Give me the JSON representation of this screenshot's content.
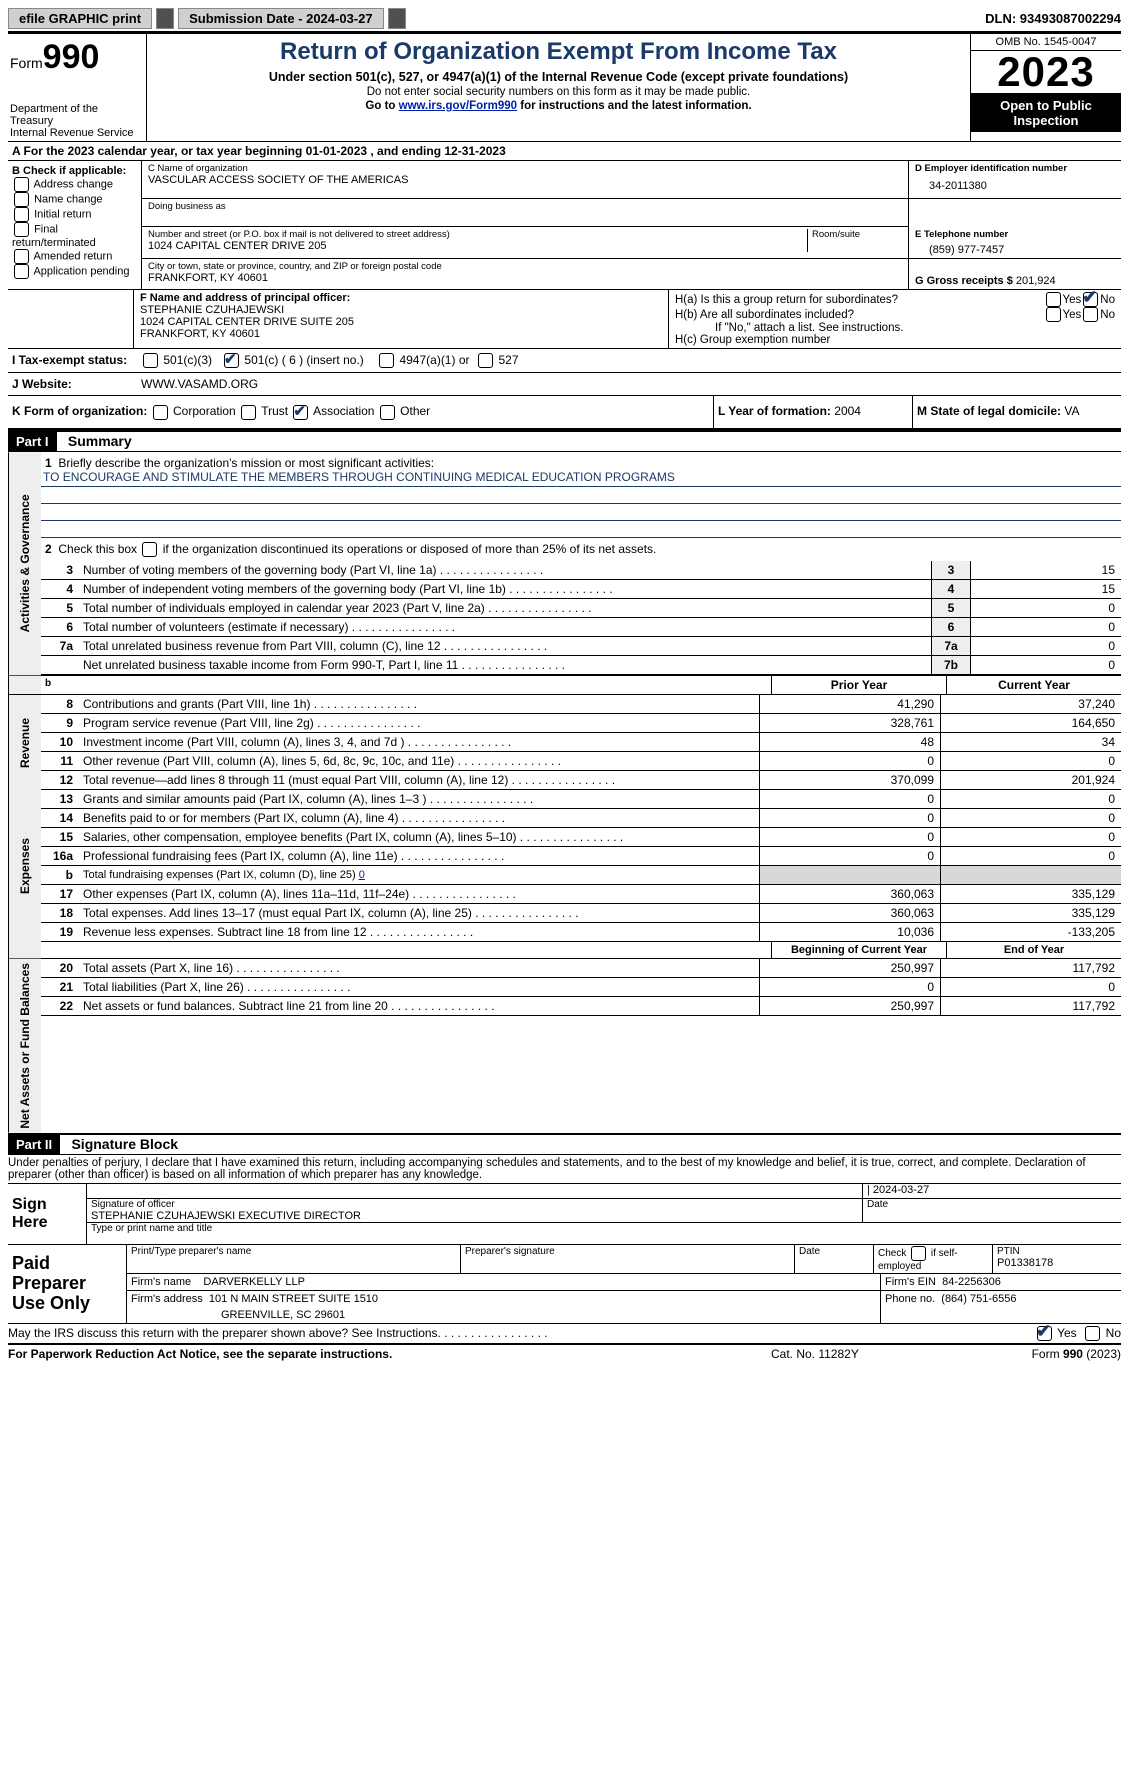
{
  "toolbar": {
    "efile": "efile GRAPHIC print",
    "print_label": "",
    "submission": "Submission Date - 2024-03-27",
    "dln": "DLN: 93493087002294"
  },
  "header": {
    "form_small": "Form",
    "form_big": "990",
    "dept1": "Department of the Treasury",
    "dept2": "Internal Revenue Service",
    "title": "Return of Organization Exempt From Income Tax",
    "subtitle": "Under section 501(c), 527, or 4947(a)(1) of the Internal Revenue Code (except private foundations)",
    "note1": "Do not enter social security numbers on this form as it may be made public.",
    "note2_pre": "Go to ",
    "note2_link": "www.irs.gov/Form990",
    "note2_post": " for instructions and the latest information.",
    "omb": "OMB No. 1545-0047",
    "year": "2023",
    "open": "Open to Public Inspection"
  },
  "row_a": "A  For the 2023 calendar year, or tax year beginning 01-01-2023    , and ending 12-31-2023",
  "section_b": {
    "header": "B Check if applicable:",
    "items": [
      "Address change",
      "Name change",
      "Initial return",
      "Final return/terminated",
      "Amended return",
      "Application pending"
    ]
  },
  "section_c": {
    "name_label": "C Name of organization",
    "name": "VASCULAR ACCESS SOCIETY OF THE AMERICAS",
    "dba_label": "Doing business as",
    "dba": "",
    "street_label": "Number and street (or P.O. box if mail is not delivered to street address)",
    "street": "1024 CAPITAL CENTER DRIVE 205",
    "room_label": "Room/suite",
    "city_label": "City or town, state or province, country, and ZIP or foreign postal code",
    "city": "FRANKFORT, KY  40601"
  },
  "section_d": {
    "label": "D Employer identification number",
    "value": "34-2011380"
  },
  "section_e": {
    "label": "E Telephone number",
    "value": "(859) 977-7457"
  },
  "section_g": {
    "label": "G Gross receipts $",
    "value": "201,924"
  },
  "section_f": {
    "label": "F  Name and address of principal officer:",
    "l1": "STEPHANIE CZUHAJEWSKI",
    "l2": "1024 CAPITAL CENTER DRIVE SUITE 205",
    "l3": "FRANKFORT, KY  40601"
  },
  "section_h": {
    "ha": "H(a)  Is this a group return for subordinates?",
    "hb": "H(b)  Are all subordinates included?",
    "hb_note": "If \"No,\" attach a list. See instructions.",
    "hc": "H(c)  Group exemption number",
    "yes": "Yes",
    "no": "No"
  },
  "row_i": {
    "label": "I   Tax-exempt status:",
    "opt1": "501(c)(3)",
    "opt2": "501(c) ( 6 ) (insert no.)",
    "opt3": "4947(a)(1) or",
    "opt4": "527"
  },
  "row_j": {
    "label": "J   Website:",
    "value": "WWW.VASAMD.ORG"
  },
  "row_k": {
    "label": "K Form of organization:",
    "opts": [
      "Corporation",
      "Trust",
      "Association",
      "Other"
    ]
  },
  "row_l": {
    "label": "L Year of formation:",
    "value": "2004"
  },
  "row_m": {
    "label": "M State of legal domicile:",
    "value": "VA"
  },
  "parts": {
    "p1": "Part I",
    "p1_title": "Summary",
    "p2": "Part II",
    "p2_title": "Signature Block"
  },
  "vert": {
    "gov": "Activities & Governance",
    "rev": "Revenue",
    "exp": "Expenses",
    "net": "Net Assets or Fund Balances"
  },
  "summary": {
    "line1_label": "Briefly describe the organization's mission or most significant activities:",
    "line1_text": "TO ENCOURAGE AND STIMULATE THE MEMBERS THROUGH CONTINUING MEDICAL EDUCATION PROGRAMS",
    "line2": "Check this box      if the organization discontinued its operations or disposed of more than 25% of its net assets.",
    "rows_a": [
      {
        "n": "3",
        "label": "Number of voting members of the governing body (Part VI, line 1a)",
        "box": "3",
        "v": "15"
      },
      {
        "n": "4",
        "label": "Number of independent voting members of the governing body (Part VI, line 1b)",
        "box": "4",
        "v": "15"
      },
      {
        "n": "5",
        "label": "Total number of individuals employed in calendar year 2023 (Part V, line 2a)",
        "box": "5",
        "v": "0"
      },
      {
        "n": "6",
        "label": "Total number of volunteers (estimate if necessary)",
        "box": "6",
        "v": "0"
      },
      {
        "n": "7a",
        "label": "Total unrelated business revenue from Part VIII, column (C), line 12",
        "box": "7a",
        "v": "0"
      },
      {
        "n": "",
        "label": "Net unrelated business taxable income from Form 990-T, Part I, line 11",
        "box": "7b",
        "v": "0"
      }
    ],
    "col_headers": {
      "prior": "Prior Year",
      "current": "Current Year",
      "begin": "Beginning of Current Year",
      "end": "End of Year"
    },
    "rows_rev": [
      {
        "n": "8",
        "label": "Contributions and grants (Part VIII, line 1h)",
        "p": "41,290",
        "c": "37,240"
      },
      {
        "n": "9",
        "label": "Program service revenue (Part VIII, line 2g)",
        "p": "328,761",
        "c": "164,650"
      },
      {
        "n": "10",
        "label": "Investment income (Part VIII, column (A), lines 3, 4, and 7d )",
        "p": "48",
        "c": "34"
      },
      {
        "n": "11",
        "label": "Other revenue (Part VIII, column (A), lines 5, 6d, 8c, 9c, 10c, and 11e)",
        "p": "0",
        "c": "0"
      },
      {
        "n": "12",
        "label": "Total revenue—add lines 8 through 11 (must equal Part VIII, column (A), line 12)",
        "p": "370,099",
        "c": "201,924"
      }
    ],
    "rows_exp": [
      {
        "n": "13",
        "label": "Grants and similar amounts paid (Part IX, column (A), lines 1–3 )",
        "p": "0",
        "c": "0"
      },
      {
        "n": "14",
        "label": "Benefits paid to or for members (Part IX, column (A), line 4)",
        "p": "0",
        "c": "0"
      },
      {
        "n": "15",
        "label": "Salaries, other compensation, employee benefits (Part IX, column (A), lines 5–10)",
        "p": "0",
        "c": "0"
      },
      {
        "n": "16a",
        "label": "Professional fundraising fees (Part IX, column (A), line 11e)",
        "p": "0",
        "c": "0"
      }
    ],
    "row_16b_label": "Total fundraising expenses (Part IX, column (D), line 25)",
    "row_16b_val": "0",
    "rows_exp2": [
      {
        "n": "17",
        "label": "Other expenses (Part IX, column (A), lines 11a–11d, 11f–24e)",
        "p": "360,063",
        "c": "335,129"
      },
      {
        "n": "18",
        "label": "Total expenses. Add lines 13–17 (must equal Part IX, column (A), line 25)",
        "p": "360,063",
        "c": "335,129"
      },
      {
        "n": "19",
        "label": "Revenue less expenses. Subtract line 18 from line 12",
        "p": "10,036",
        "c": "-133,205"
      }
    ],
    "rows_net": [
      {
        "n": "20",
        "label": "Total assets (Part X, line 16)",
        "p": "250,997",
        "c": "117,792"
      },
      {
        "n": "21",
        "label": "Total liabilities (Part X, line 26)",
        "p": "0",
        "c": "0"
      },
      {
        "n": "22",
        "label": "Net assets or fund balances. Subtract line 21 from line 20",
        "p": "250,997",
        "c": "117,792"
      }
    ]
  },
  "sig": {
    "penalty": "Under penalties of perjury, I declare that I have examined this return, including accompanying schedules and statements, and to the best of my knowledge and belief, it is true, correct, and complete. Declaration of preparer (other than officer) is based on all information of which preparer has any knowledge.",
    "sign_here": "Sign Here",
    "date": "2024-03-27",
    "sig_officer_label": "Signature of officer",
    "officer": "STEPHANIE CZUHAJEWSKI  EXECUTIVE DIRECTOR",
    "type_label": "Type or print name and title",
    "date_label": "Date",
    "paid": "Paid Preparer Use Only",
    "prep_name_label": "Print/Type preparer's name",
    "prep_sig_label": "Preparer's signature",
    "check_self": "Check       if self-employed",
    "ptin_label": "PTIN",
    "ptin": "P01338178",
    "firm_label": "Firm's name",
    "firm": "DARVERKELLY LLP",
    "firm_ein_label": "Firm's EIN",
    "firm_ein": "84-2256306",
    "firm_addr_label": "Firm's address",
    "firm_addr1": "101 N MAIN STREET SUITE 1510",
    "firm_addr2": "GREENVILLE, SC  29601",
    "phone_label": "Phone no.",
    "phone": "(864) 751-6556",
    "discuss": "May the IRS discuss this return with the preparer shown above? See Instructions."
  },
  "footer": {
    "left": "For Paperwork Reduction Act Notice, see the separate instructions.",
    "mid": "Cat. No. 11282Y",
    "right": "Form 990 (2023)"
  }
}
